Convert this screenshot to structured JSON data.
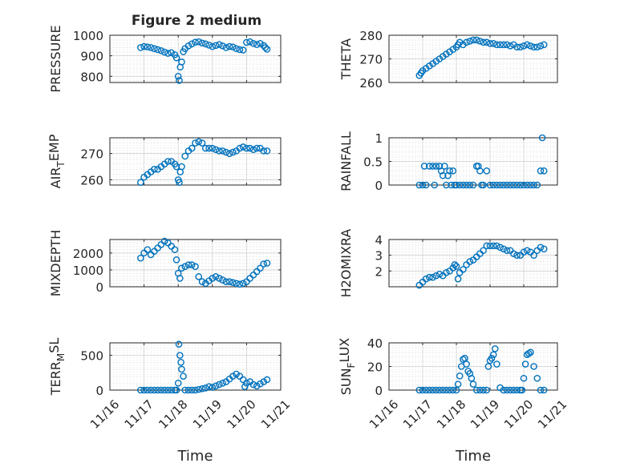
{
  "figure": {
    "title": "Figure 2 medium",
    "marker_color": "#0072BD",
    "axis_color": "#262626",
    "grid_color": "#d9d9d9",
    "xticklabels": [
      "11/16",
      "11/17",
      "11/18",
      "11/19",
      "11/20",
      "11/21"
    ],
    "xlabel": "Time"
  },
  "chart_data": [
    {
      "type": "scatter",
      "title": "Figure 2 medium",
      "ylabel": "PRESSURE",
      "xlabel": "",
      "xlim": [
        0,
        5
      ],
      "ylim": [
        770,
        1000
      ],
      "yticks": [
        800,
        900,
        1000
      ],
      "grid": true,
      "x": [
        0.9,
        1.0,
        1.1,
        1.2,
        1.3,
        1.4,
        1.5,
        1.6,
        1.7,
        1.8,
        1.9,
        1.95,
        2.0,
        2.03,
        2.06,
        2.1,
        2.15,
        2.2,
        2.3,
        2.4,
        2.5,
        2.6,
        2.7,
        2.8,
        2.9,
        3.0,
        3.1,
        3.2,
        3.3,
        3.4,
        3.5,
        3.6,
        3.7,
        3.8,
        3.9,
        4.0,
        4.1,
        4.2,
        4.3,
        4.4,
        4.5,
        4.55,
        4.6
      ],
      "y": [
        940,
        945,
        943,
        940,
        935,
        930,
        925,
        918,
        912,
        915,
        905,
        890,
        800,
        780,
        845,
        870,
        920,
        935,
        948,
        958,
        966,
        968,
        962,
        958,
        952,
        945,
        950,
        955,
        948,
        940,
        945,
        943,
        935,
        930,
        928,
        965,
        968,
        960,
        955,
        960,
        950,
        940,
        932
      ]
    },
    {
      "type": "scatter",
      "ylabel": "THETA",
      "xlabel": "",
      "xlim": [
        0,
        5
      ],
      "ylim": [
        260,
        280
      ],
      "yticks": [
        260,
        270,
        280
      ],
      "grid": true,
      "x": [
        0.9,
        0.95,
        1.0,
        1.1,
        1.2,
        1.3,
        1.4,
        1.5,
        1.6,
        1.7,
        1.8,
        1.9,
        2.0,
        2.05,
        2.1,
        2.2,
        2.3,
        2.4,
        2.5,
        2.6,
        2.7,
        2.8,
        2.9,
        3.0,
        3.1,
        3.2,
        3.3,
        3.4,
        3.5,
        3.6,
        3.7,
        3.8,
        3.9,
        4.0,
        4.1,
        4.2,
        4.3,
        4.4,
        4.5,
        4.6
      ],
      "y": [
        263,
        264,
        265,
        266,
        267,
        268,
        269,
        270,
        271,
        272,
        273,
        274,
        275,
        276,
        277,
        276,
        277,
        277.5,
        278,
        278,
        277.5,
        277,
        277,
        276.5,
        276.5,
        276,
        276,
        276,
        276,
        275.5,
        276,
        275,
        275,
        275.5,
        276,
        275.5,
        275,
        275,
        275.5,
        276
      ]
    },
    {
      "type": "scatter",
      "ylabel": "AIR_TEMP",
      "xlabel": "",
      "xlim": [
        0,
        5
      ],
      "ylim": [
        258,
        276
      ],
      "yticks": [
        260,
        270
      ],
      "grid": true,
      "x": [
        0.9,
        1.0,
        1.1,
        1.2,
        1.3,
        1.4,
        1.5,
        1.6,
        1.7,
        1.8,
        1.9,
        1.95,
        2.0,
        2.03,
        2.06,
        2.1,
        2.2,
        2.3,
        2.4,
        2.5,
        2.6,
        2.7,
        2.8,
        2.9,
        3.0,
        3.1,
        3.2,
        3.3,
        3.4,
        3.5,
        3.6,
        3.7,
        3.8,
        3.9,
        4.0,
        4.1,
        4.2,
        4.3,
        4.4,
        4.5,
        4.6
      ],
      "y": [
        259,
        261,
        262,
        263,
        264,
        264,
        265,
        266,
        267,
        267,
        266,
        265,
        260,
        259,
        263,
        265,
        269,
        271,
        272,
        274,
        274.5,
        274,
        272,
        272,
        272,
        271.5,
        271,
        271,
        270.5,
        270,
        270.5,
        271,
        272,
        272.5,
        272,
        272,
        271.5,
        272,
        272,
        271,
        271
      ]
    },
    {
      "type": "scatter",
      "ylabel": "RAINFALL",
      "xlabel": "",
      "xlim": [
        0,
        5
      ],
      "ylim": [
        0,
        1
      ],
      "yticks": [
        0,
        0.5,
        1
      ],
      "grid": true,
      "x": [
        0.9,
        1.0,
        1.05,
        1.1,
        1.2,
        1.3,
        1.35,
        1.4,
        1.5,
        1.55,
        1.6,
        1.65,
        1.7,
        1.75,
        1.8,
        1.85,
        1.9,
        1.95,
        2.0,
        2.1,
        2.2,
        2.3,
        2.4,
        2.5,
        2.6,
        2.65,
        2.7,
        2.75,
        2.8,
        2.9,
        3.0,
        3.1,
        3.2,
        3.3,
        3.4,
        3.5,
        3.6,
        3.7,
        3.8,
        3.9,
        4.0,
        4.1,
        4.2,
        4.3,
        4.4,
        4.5,
        4.55,
        4.6
      ],
      "y": [
        0,
        0,
        0.4,
        0,
        0.4,
        0.4,
        0,
        0.4,
        0.4,
        0.3,
        0.2,
        0.4,
        0,
        0.2,
        0.3,
        0,
        0.3,
        0,
        0,
        0,
        0,
        0,
        0,
        0,
        0.4,
        0.4,
        0.3,
        0,
        0,
        0.3,
        0,
        0,
        0,
        0,
        0,
        0,
        0,
        0,
        0,
        0,
        0,
        0,
        0,
        0,
        0,
        0.3,
        1,
        0.3
      ]
    },
    {
      "type": "scatter",
      "ylabel": "MIXDEPTH",
      "xlabel": "",
      "xlim": [
        0,
        5
      ],
      "ylim": [
        0,
        2800
      ],
      "yticks": [
        0,
        1000,
        2000
      ],
      "grid": true,
      "x": [
        0.9,
        1.0,
        1.1,
        1.2,
        1.3,
        1.4,
        1.5,
        1.6,
        1.7,
        1.8,
        1.9,
        1.95,
        2.0,
        2.05,
        2.1,
        2.2,
        2.3,
        2.4,
        2.5,
        2.6,
        2.7,
        2.8,
        2.9,
        3.0,
        3.1,
        3.2,
        3.3,
        3.4,
        3.5,
        3.6,
        3.7,
        3.8,
        3.9,
        4.0,
        4.1,
        4.2,
        4.3,
        4.4,
        4.5,
        4.6
      ],
      "y": [
        1700,
        2000,
        2200,
        1900,
        2100,
        2300,
        2500,
        2700,
        2600,
        2400,
        2200,
        1600,
        800,
        500,
        1100,
        1200,
        1300,
        1300,
        1200,
        600,
        300,
        200,
        350,
        500,
        600,
        500,
        400,
        300,
        300,
        250,
        200,
        150,
        200,
        300,
        500,
        700,
        900,
        1100,
        1350,
        1400
      ]
    },
    {
      "type": "scatter",
      "ylabel": "H2OMIXRA",
      "xlabel": "",
      "xlim": [
        0,
        5
      ],
      "ylim": [
        1,
        4
      ],
      "yticks": [
        2,
        3,
        4
      ],
      "grid": true,
      "x": [
        0.9,
        1.0,
        1.1,
        1.2,
        1.3,
        1.4,
        1.5,
        1.6,
        1.7,
        1.8,
        1.9,
        1.95,
        2.0,
        2.05,
        2.1,
        2.2,
        2.3,
        2.4,
        2.5,
        2.6,
        2.7,
        2.8,
        2.9,
        3.0,
        3.1,
        3.2,
        3.3,
        3.4,
        3.5,
        3.6,
        3.7,
        3.8,
        3.9,
        4.0,
        4.1,
        4.2,
        4.3,
        4.4,
        4.5,
        4.6
      ],
      "y": [
        1.1,
        1.3,
        1.5,
        1.6,
        1.6,
        1.7,
        1.8,
        1.7,
        1.9,
        2.0,
        2.2,
        2.4,
        2.3,
        1.5,
        1.9,
        2.1,
        2.4,
        2.6,
        2.7,
        2.9,
        3.1,
        3.3,
        3.6,
        3.6,
        3.6,
        3.6,
        3.5,
        3.4,
        3.3,
        3.3,
        3.1,
        3.0,
        3.0,
        3.2,
        3.3,
        3.2,
        3.0,
        3.3,
        3.5,
        3.4
      ]
    },
    {
      "type": "scatter",
      "ylabel": "TERR_MSL",
      "xlabel": "Time",
      "xlim": [
        0,
        5
      ],
      "ylim": [
        0,
        680
      ],
      "yticks": [
        0,
        500
      ],
      "grid": true,
      "x": [
        0.9,
        1.0,
        1.1,
        1.2,
        1.3,
        1.4,
        1.5,
        1.6,
        1.7,
        1.8,
        1.9,
        1.95,
        2.0,
        2.02,
        2.05,
        2.08,
        2.1,
        2.15,
        2.2,
        2.3,
        2.4,
        2.5,
        2.6,
        2.7,
        2.8,
        2.9,
        3.0,
        3.1,
        3.2,
        3.3,
        3.4,
        3.5,
        3.6,
        3.7,
        3.8,
        3.9,
        3.95,
        4.0,
        4.1,
        4.2,
        4.3,
        4.4,
        4.5,
        4.6
      ],
      "y": [
        0,
        0,
        0,
        0,
        0,
        0,
        0,
        0,
        0,
        0,
        0,
        0,
        100,
        660,
        500,
        400,
        300,
        200,
        0,
        0,
        0,
        0,
        10,
        20,
        30,
        50,
        40,
        60,
        80,
        100,
        120,
        160,
        200,
        230,
        200,
        150,
        50,
        100,
        120,
        80,
        60,
        90,
        120,
        150
      ]
    },
    {
      "type": "scatter",
      "ylabel": "SUN_FLUX",
      "xlabel": "Time",
      "xlim": [
        0,
        5
      ],
      "ylim": [
        0,
        40
      ],
      "yticks": [
        0,
        20,
        40
      ],
      "grid": true,
      "x": [
        0.9,
        1.0,
        1.1,
        1.2,
        1.3,
        1.4,
        1.5,
        1.6,
        1.7,
        1.8,
        1.9,
        2.0,
        2.05,
        2.1,
        2.15,
        2.2,
        2.25,
        2.3,
        2.35,
        2.4,
        2.45,
        2.5,
        2.6,
        2.7,
        2.8,
        2.9,
        2.95,
        3.0,
        3.05,
        3.1,
        3.15,
        3.2,
        3.3,
        3.4,
        3.5,
        3.6,
        3.7,
        3.8,
        3.9,
        3.95,
        4.0,
        4.05,
        4.1,
        4.15,
        4.2,
        4.3,
        4.4,
        4.5,
        4.6
      ],
      "y": [
        0,
        0,
        0,
        0,
        0,
        0,
        0,
        0,
        0,
        0,
        0,
        0,
        5,
        12,
        20,
        26,
        27,
        22,
        16,
        14,
        10,
        5,
        0,
        0,
        0,
        0,
        20,
        25,
        27,
        30,
        35,
        22,
        2,
        0,
        0,
        0,
        0,
        0,
        0,
        0,
        10,
        22,
        30,
        31,
        32,
        20,
        10,
        0,
        0
      ]
    }
  ]
}
